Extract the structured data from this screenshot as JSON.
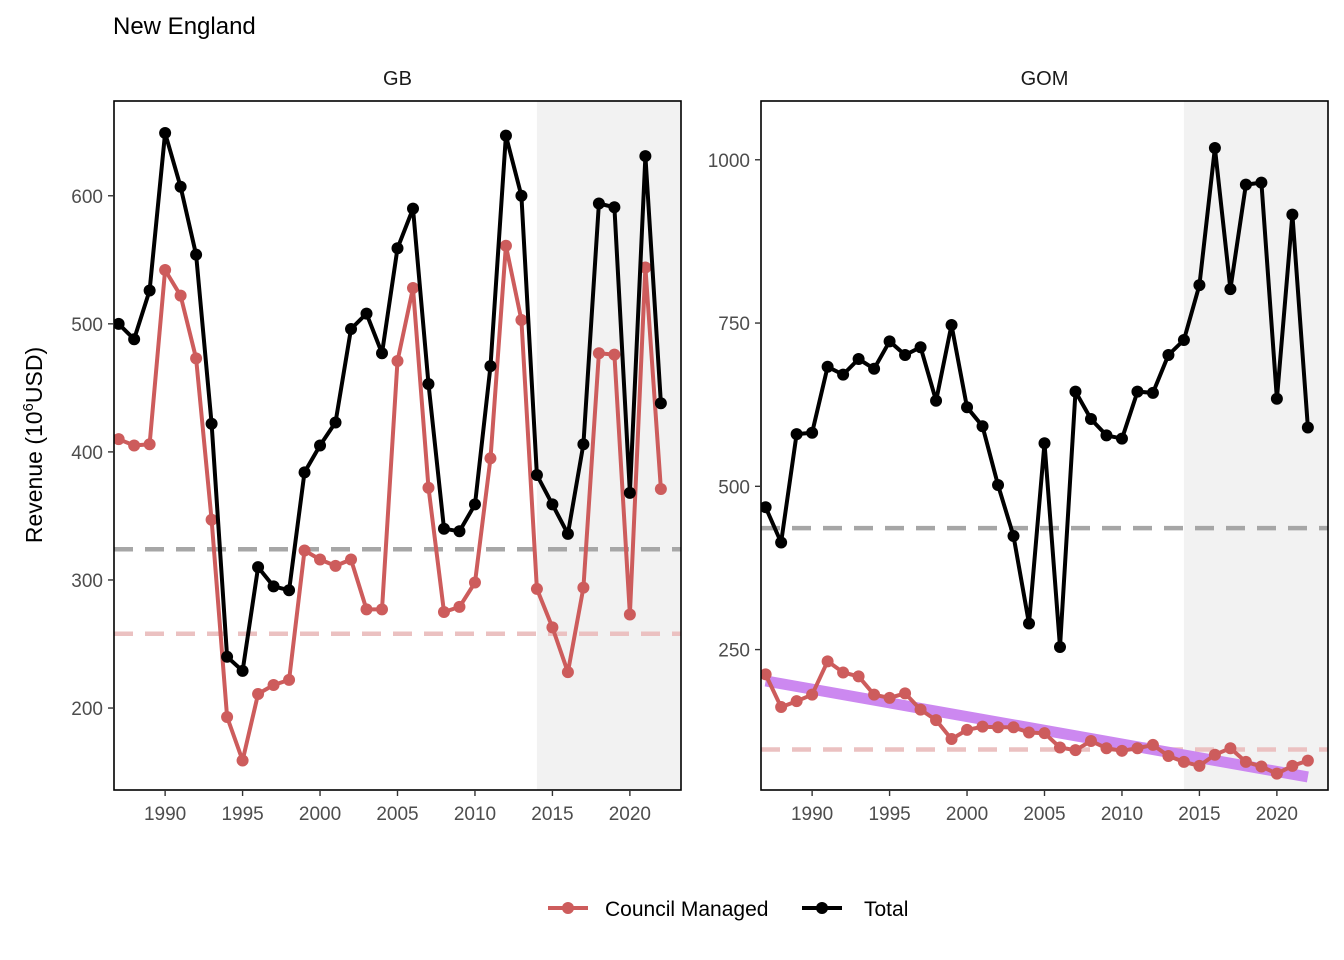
{
  "title": "New England",
  "ylabel_main": "Revenue (10",
  "ylabel_sup": "6",
  "ylabel_tail": "USD)",
  "colors": {
    "council": "#CD5C5C",
    "total": "#000000",
    "trend": "#CC88F0",
    "mean_total": "#A6A6A6",
    "mean_council": "#EBC1C1",
    "shade": "#F2F2F2"
  },
  "legend": [
    {
      "label": "Council Managed",
      "color": "#CD5C5C"
    },
    {
      "label": "Total",
      "color": "#000000"
    }
  ],
  "chart_data": [
    {
      "type": "line",
      "panel": "GB",
      "xlim": [
        1986.7,
        2023.3
      ],
      "ylim": [
        136,
        674
      ],
      "x_ticks": [
        1990,
        1995,
        2000,
        2005,
        2010,
        2015,
        2020
      ],
      "y_ticks": [
        200,
        300,
        400,
        500,
        600
      ],
      "shaded_x": [
        2014,
        2023.3
      ],
      "hlines": [
        {
          "series": "Total",
          "y": 324
        },
        {
          "series": "Council Managed",
          "y": 258
        }
      ],
      "x": [
        1987,
        1988,
        1989,
        1990,
        1991,
        1992,
        1993,
        1994,
        1995,
        1996,
        1997,
        1998,
        1999,
        2000,
        2001,
        2002,
        2003,
        2004,
        2005,
        2006,
        2007,
        2008,
        2009,
        2010,
        2011,
        2012,
        2013,
        2014,
        2015,
        2016,
        2017,
        2018,
        2019,
        2020,
        2021,
        2022
      ],
      "series": [
        {
          "name": "Total",
          "values": [
            500,
            488,
            526,
            649,
            607,
            554,
            422,
            240,
            229,
            310,
            295,
            292,
            384,
            405,
            423,
            496,
            508,
            477,
            559,
            590,
            453,
            340,
            338,
            359,
            467,
            647,
            600,
            382,
            359,
            336,
            406,
            594,
            591,
            368,
            631,
            438
          ]
        },
        {
          "name": "Council Managed",
          "values": [
            410,
            405,
            406,
            542,
            522,
            473,
            347,
            193,
            159,
            211,
            218,
            222,
            323,
            316,
            311,
            316,
            277,
            277,
            471,
            528,
            372,
            275,
            279,
            298,
            395,
            561,
            503,
            293,
            263,
            228,
            294,
            477,
            476,
            273,
            544,
            371
          ]
        }
      ]
    },
    {
      "type": "line",
      "panel": "GOM",
      "xlim": [
        1986.7,
        2023.3
      ],
      "ylim": [
        35,
        1090
      ],
      "x_ticks": [
        1990,
        1995,
        2000,
        2005,
        2010,
        2015,
        2020
      ],
      "y_ticks": [
        250,
        500,
        750,
        1000
      ],
      "shaded_x": [
        2014,
        2023.3
      ],
      "hlines": [
        {
          "series": "Total",
          "y": 436
        },
        {
          "series": "Council Managed",
          "y": 97
        }
      ],
      "trend": {
        "x": [
          1987,
          2022
        ],
        "y": [
          202,
          55
        ]
      },
      "x": [
        1987,
        1988,
        1989,
        1990,
        1991,
        1992,
        1993,
        1994,
        1995,
        1996,
        1997,
        1998,
        1999,
        2000,
        2001,
        2002,
        2003,
        2004,
        2005,
        2006,
        2007,
        2008,
        2009,
        2010,
        2011,
        2012,
        2013,
        2014,
        2015,
        2016,
        2017,
        2018,
        2019,
        2020,
        2021,
        2022
      ],
      "series": [
        {
          "name": "Total",
          "values": [
            468,
            414,
            580,
            582,
            683,
            671,
            695,
            680,
            722,
            701,
            713,
            631,
            747,
            621,
            592,
            502,
            424,
            290,
            566,
            254,
            645,
            603,
            578,
            573,
            645,
            643,
            701,
            724,
            808,
            1018,
            802,
            962,
            965,
            634,
            916,
            590
          ]
        },
        {
          "name": "Council Managed",
          "values": [
            212,
            162,
            171,
            181,
            232,
            215,
            209,
            181,
            176,
            183,
            158,
            142,
            113,
            127,
            132,
            131,
            131,
            123,
            122,
            100,
            96,
            110,
            99,
            95,
            99,
            104,
            87,
            78,
            72,
            89,
            99,
            78,
            71,
            60,
            72,
            80
          ]
        }
      ]
    }
  ]
}
